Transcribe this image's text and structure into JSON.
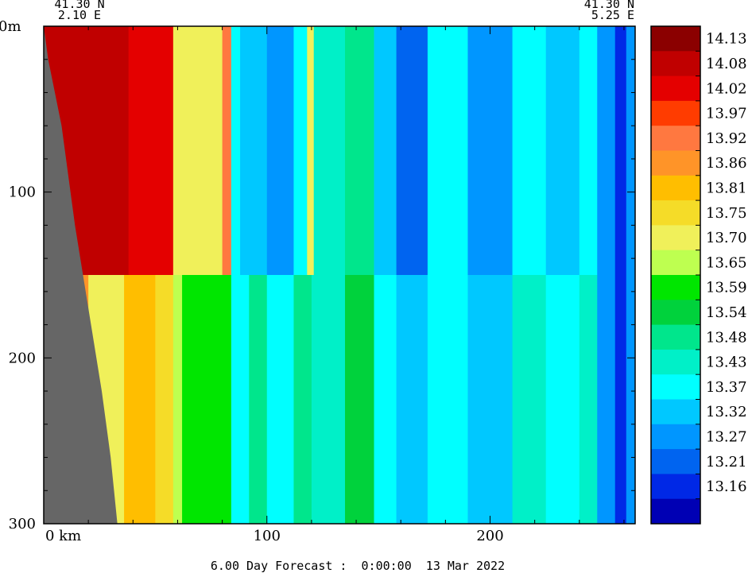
{
  "chart_data": {
    "type": "heatmap",
    "title": "",
    "footer": "6.00 Day Forecast :  0:00:00  13 Mar 2022",
    "corner_labels": {
      "top_left_lat": "41.30 N",
      "top_left_lon": "2.10 E",
      "top_right_lat": "41.30 N",
      "top_right_lon": "5.25 E"
    },
    "x_axis": {
      "unit_label": "0 km",
      "ticks": [
        100,
        200
      ],
      "range": [
        0,
        265
      ]
    },
    "y_axis": {
      "top_label": "0m",
      "ticks": [
        100,
        200,
        300
      ],
      "range": [
        0,
        300
      ],
      "inverted": true
    },
    "colorbar": {
      "labels": [
        "14.13",
        "14.08",
        "14.02",
        "13.97",
        "13.92",
        "13.86",
        "13.81",
        "13.75",
        "13.70",
        "13.65",
        "13.59",
        "13.54",
        "13.48",
        "13.43",
        "13.37",
        "13.32",
        "13.27",
        "13.21",
        "13.16"
      ],
      "colors": [
        "#8b0000",
        "#c00000",
        "#e40000",
        "#ff3c00",
        "#ff7840",
        "#ff9428",
        "#ffbe00",
        "#f5dc28",
        "#f0f05a",
        "#beff50",
        "#00e600",
        "#00d23c",
        "#00e68c",
        "#00f0c8",
        "#00ffff",
        "#00c8ff",
        "#0096ff",
        "#0064f0",
        "#0028e6",
        "#0000b4"
      ]
    },
    "columns": [
      {
        "x0": 0,
        "x1": 10,
        "value": 14.1
      },
      {
        "x0": 10,
        "x1": 38,
        "value": 14.12
      },
      {
        "x0": 38,
        "x1": 58,
        "value": 14.02
      },
      {
        "x0": 58,
        "x1": 80,
        "value": 13.72
      },
      {
        "x0": 80,
        "x1": 84,
        "value": 13.93
      },
      {
        "x0": 84,
        "x1": 88,
        "value": 13.4
      },
      {
        "x0": 88,
        "x1": 100,
        "value": 13.34
      },
      {
        "x0": 100,
        "x1": 112,
        "value": 13.28
      },
      {
        "x0": 112,
        "x1": 118,
        "value": 13.4
      },
      {
        "x0": 118,
        "x1": 121,
        "value": 13.74
      },
      {
        "x0": 121,
        "x1": 135,
        "value": 13.45
      },
      {
        "x0": 135,
        "x1": 148,
        "value": 13.5
      },
      {
        "x0": 148,
        "x1": 158,
        "value": 13.33
      },
      {
        "x0": 158,
        "x1": 172,
        "value": 13.24
      },
      {
        "x0": 172,
        "x1": 190,
        "value": 13.37
      },
      {
        "x0": 190,
        "x1": 210,
        "value": 13.3
      },
      {
        "x0": 210,
        "x1": 225,
        "value": 13.38
      },
      {
        "x0": 225,
        "x1": 240,
        "value": 13.32
      },
      {
        "x0": 240,
        "x1": 248,
        "value": 13.4
      },
      {
        "x0": 248,
        "x1": 256,
        "value": 13.27
      },
      {
        "x0": 256,
        "x1": 261,
        "value": 13.17
      },
      {
        "x0": 261,
        "x1": 265,
        "value": 13.3
      }
    ],
    "columns_deep": [
      {
        "x0": 0,
        "x1": 20,
        "value": 13.9
      },
      {
        "x0": 20,
        "x1": 36,
        "value": 13.72
      },
      {
        "x0": 36,
        "x1": 50,
        "value": 13.83
      },
      {
        "x0": 50,
        "x1": 58,
        "value": 13.8
      },
      {
        "x0": 58,
        "x1": 62,
        "value": 13.68
      },
      {
        "x0": 62,
        "x1": 80,
        "value": 13.6
      },
      {
        "x0": 80,
        "x1": 84,
        "value": 13.62
      },
      {
        "x0": 84,
        "x1": 92,
        "value": 13.4
      },
      {
        "x0": 92,
        "x1": 100,
        "value": 13.48
      },
      {
        "x0": 100,
        "x1": 112,
        "value": 13.4
      },
      {
        "x0": 112,
        "x1": 120,
        "value": 13.52
      },
      {
        "x0": 120,
        "x1": 135,
        "value": 13.46
      },
      {
        "x0": 135,
        "x1": 148,
        "value": 13.55
      },
      {
        "x0": 148,
        "x1": 158,
        "value": 13.42
      },
      {
        "x0": 158,
        "x1": 172,
        "value": 13.36
      },
      {
        "x0": 172,
        "x1": 190,
        "value": 13.4
      },
      {
        "x0": 190,
        "x1": 210,
        "value": 13.35
      },
      {
        "x0": 210,
        "x1": 225,
        "value": 13.44
      },
      {
        "x0": 225,
        "x1": 240,
        "value": 13.37
      },
      {
        "x0": 240,
        "x1": 248,
        "value": 13.45
      },
      {
        "x0": 248,
        "x1": 256,
        "value": 13.3
      },
      {
        "x0": 256,
        "x1": 261,
        "value": 13.17
      },
      {
        "x0": 261,
        "x1": 265,
        "value": 13.3
      }
    ],
    "land_profile": [
      [
        0,
        0
      ],
      [
        2,
        20
      ],
      [
        8,
        60
      ],
      [
        14,
        120
      ],
      [
        20,
        170
      ],
      [
        26,
        220
      ],
      [
        30,
        260
      ],
      [
        33,
        300
      ]
    ]
  }
}
